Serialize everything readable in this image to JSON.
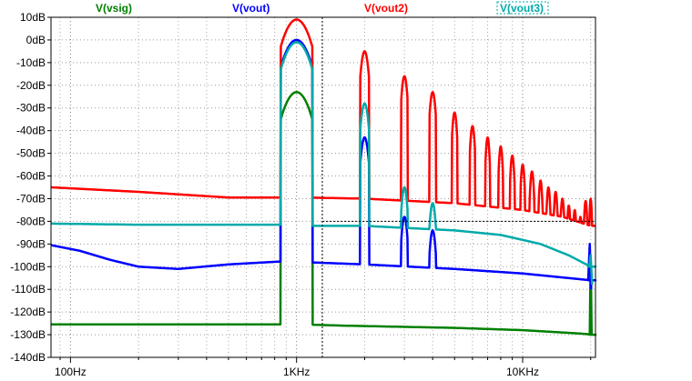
{
  "chart_data": {
    "type": "line",
    "title": "",
    "xlabel": "",
    "ylabel": "",
    "x_scale": "log",
    "xlim": [
      82,
      21000
    ],
    "ylim": [
      -140,
      10
    ],
    "grid": true,
    "legend_placement": "top",
    "y_ticks": [
      10,
      0,
      -10,
      -20,
      -30,
      -40,
      -50,
      -60,
      -70,
      -80,
      -90,
      -100,
      -110,
      -120,
      -130,
      -140
    ],
    "y_tick_labels": [
      "10dB",
      "0dB",
      "-10dB",
      "-20dB",
      "-30dB",
      "-40dB",
      "-50dB",
      "-60dB",
      "-70dB",
      "-80dB",
      "-90dB",
      "-100dB",
      "-110dB",
      "-120dB",
      "-130dB",
      "-140dB"
    ],
    "x_major_ticks": [
      100,
      1000,
      10000
    ],
    "x_tick_labels": [
      "100Hz",
      "1KHz",
      "10KHz"
    ],
    "cursor": {
      "x": 1300,
      "y": -80
    },
    "series": [
      {
        "name": "V(vsig)",
        "color": "#008000",
        "noise": [
          [
            82,
            -125.5
          ],
          [
            800,
            -125.5
          ],
          [
            930,
            -125.5
          ],
          [
            1080,
            -125.5
          ],
          [
            1600,
            -126
          ],
          [
            5000,
            -127
          ],
          [
            10000,
            -128
          ],
          [
            18000,
            -129.5
          ],
          [
            20500,
            -130
          ]
        ],
        "peaks": [
          [
            1000,
            -23,
            0.07
          ]
        ],
        "edge": [
          [
            19800,
            -130
          ],
          [
            20000,
            -95
          ],
          [
            20200,
            -130
          ]
        ]
      },
      {
        "name": "V(vout)",
        "color": "#0000ff",
        "noise": [
          [
            82,
            -90.5
          ],
          [
            110,
            -93
          ],
          [
            150,
            -97
          ],
          [
            200,
            -100
          ],
          [
            300,
            -101
          ],
          [
            500,
            -99
          ],
          [
            930,
            -97.5
          ],
          [
            1080,
            -98
          ],
          [
            2000,
            -99
          ],
          [
            5000,
            -101
          ],
          [
            10000,
            -103
          ],
          [
            20000,
            -106
          ]
        ],
        "peaks": [
          [
            1000,
            0,
            0.07
          ],
          [
            2000,
            -43,
            0.02
          ],
          [
            3000,
            -78,
            0.015
          ],
          [
            4000,
            -84,
            0.015
          ],
          [
            5000,
            -106,
            0.012
          ]
        ],
        "edge": [
          [
            19500,
            -106
          ],
          [
            19800,
            -90
          ],
          [
            20100,
            -110
          ]
        ]
      },
      {
        "name": "V(vout2)",
        "color": "#ff0000",
        "noise": [
          [
            82,
            -65
          ],
          [
            200,
            -67
          ],
          [
            500,
            -69.5
          ],
          [
            930,
            -69.5
          ],
          [
            1080,
            -69.5
          ],
          [
            2000,
            -70
          ],
          [
            5000,
            -72
          ],
          [
            10000,
            -75
          ],
          [
            15000,
            -78
          ],
          [
            20000,
            -82
          ]
        ],
        "peaks": [
          [
            1000,
            9,
            0.07
          ],
          [
            2000,
            -5,
            0.02
          ],
          [
            3000,
            -16,
            0.015
          ],
          [
            4000,
            -23,
            0.015
          ],
          [
            5000,
            -32,
            0.012
          ],
          [
            6000,
            -38,
            0.012
          ],
          [
            7000,
            -43,
            0.01
          ],
          [
            8000,
            -47,
            0.01
          ],
          [
            9000,
            -51,
            0.01
          ],
          [
            10000,
            -55,
            0.01
          ],
          [
            11000,
            -58,
            0.01
          ],
          [
            12000,
            -62,
            0.009
          ],
          [
            13000,
            -65,
            0.009
          ],
          [
            14000,
            -67,
            0.009
          ],
          [
            15000,
            -70,
            0.009
          ],
          [
            16000,
            -73,
            0.008
          ],
          [
            17000,
            -75,
            0.008
          ],
          [
            18000,
            -78,
            0.008
          ],
          [
            19000,
            -71,
            0.008
          ],
          [
            20000,
            -70,
            0.006
          ]
        ],
        "edge": []
      },
      {
        "name": "V(vout3)",
        "color": "#00aaaa",
        "noise": [
          [
            82,
            -81
          ],
          [
            200,
            -81.5
          ],
          [
            930,
            -81.5
          ],
          [
            1080,
            -82
          ],
          [
            2000,
            -82
          ],
          [
            5000,
            -84
          ],
          [
            8000,
            -86
          ],
          [
            12000,
            -90
          ],
          [
            16000,
            -95
          ],
          [
            20000,
            -100
          ]
        ],
        "peaks": [
          [
            1000,
            -1,
            0.07
          ],
          [
            2000,
            -28,
            0.02
          ],
          [
            3000,
            -65,
            0.015
          ],
          [
            4000,
            -72,
            0.015
          ]
        ],
        "edge": [
          [
            19700,
            -100
          ],
          [
            20000,
            -95
          ],
          [
            20300,
            -108
          ]
        ]
      }
    ]
  }
}
